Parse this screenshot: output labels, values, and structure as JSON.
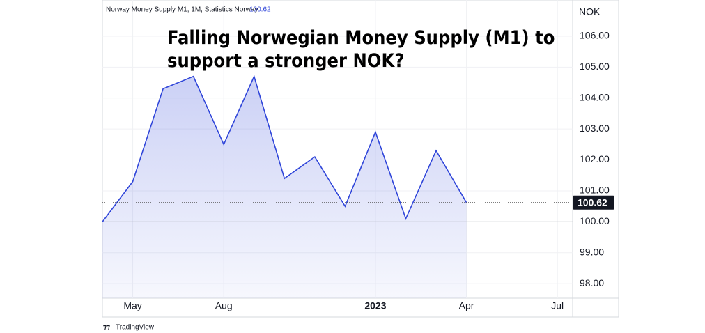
{
  "chart_data": {
    "type": "area",
    "title": "Falling Norwegian Money Supply (M1) to support a stronger NOK?",
    "y_unit": "NOK",
    "brand": "TradingView",
    "x": [
      0,
      1,
      2,
      3,
      4,
      5,
      6,
      7,
      8,
      9,
      10,
      11,
      12
    ],
    "xlim": [
      0,
      15.5
    ],
    "xticks": [
      {
        "value": 1,
        "label": "May"
      },
      {
        "value": 4,
        "label": "Aug"
      },
      {
        "value": 9,
        "label": "2023"
      },
      {
        "value": 12,
        "label": "Apr"
      },
      {
        "value": 15,
        "label": "Jul"
      }
    ],
    "series": [
      {
        "name": "Norway Money Supply M1, 1M, Statistics Norway",
        "color": "#2f45d9",
        "values": [
          100.0,
          101.3,
          104.3,
          104.7,
          102.5,
          104.7,
          101.4,
          102.1,
          100.5,
          102.9,
          100.1,
          102.3,
          100.62
        ]
      }
    ],
    "reference_line": 100,
    "ylim": [
      97.53,
      107.17
    ],
    "yticks": [
      {
        "value": 98,
        "label": "98.00"
      },
      {
        "value": 99,
        "label": "99.00"
      },
      {
        "value": 100,
        "label": "100.00"
      },
      {
        "value": 101,
        "label": "101.00"
      },
      {
        "value": 102,
        "label": "102.00"
      },
      {
        "value": 103,
        "label": "103.00"
      },
      {
        "value": 104,
        "label": "104.00"
      },
      {
        "value": 105,
        "label": "105.00"
      },
      {
        "value": 106,
        "label": "106.00"
      }
    ],
    "grid": true
  }
}
